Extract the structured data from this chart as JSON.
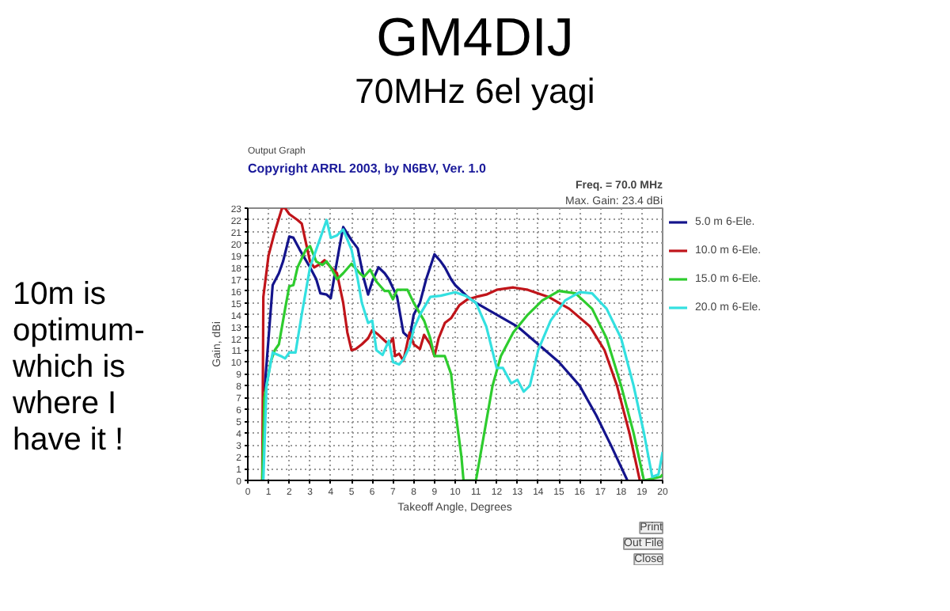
{
  "chart_data": {
    "type": "line",
    "title": "GM4DIJ",
    "subtitle": "70MHz 6el yagi",
    "xlabel": "Takeoff Angle, Degrees",
    "ylabel": "Gain, dBi",
    "annotations": [
      "10m is\noptimum-\nwhich is\nwhere I\nhave it !",
      "Output Graph",
      "Copyright ARRL 2003, by N6BV, Ver. 1.0",
      "Freq. = 70.0 MHz",
      "Max. Gain: 23.4 dBi",
      "Print",
      "Out File",
      "Close"
    ],
    "xlim": [
      0,
      20
    ],
    "ylim": [
      0,
      23
    ],
    "xticks": [
      0,
      1,
      2,
      3,
      4,
      5,
      6,
      7,
      8,
      9,
      10,
      11,
      12,
      13,
      14,
      15,
      16,
      17,
      18,
      19,
      20
    ],
    "yticks": [
      0,
      1,
      2,
      3,
      4,
      5,
      6,
      7,
      8,
      9,
      10,
      11,
      12,
      13,
      14,
      15,
      16,
      17,
      18,
      19,
      20,
      21,
      22,
      23
    ],
    "grid": true,
    "legend": "right",
    "line_style": "solid",
    "series": [
      {
        "name": "5.0 m 6-Ele.",
        "color": "#14148c",
        "x": [
          0.8,
          1.0,
          1.2,
          1.5,
          1.7,
          2.0,
          2.2,
          2.5,
          3.0,
          3.3,
          3.5,
          3.8,
          4.0,
          4.2,
          4.4,
          4.6,
          5.0,
          5.3,
          5.6,
          5.8,
          6.0,
          6.3,
          6.6,
          6.8,
          7.2,
          7.5,
          7.8,
          8.0,
          8.3,
          8.6,
          9.0,
          9.3,
          9.5,
          9.8,
          10.0,
          10.6,
          11.0,
          12.0,
          13.0,
          14.0,
          15.0,
          16.0,
          16.8,
          17.5,
          18.3
        ],
        "values": [
          7.5,
          12,
          16.5,
          17.5,
          18.5,
          20.6,
          20.5,
          19.5,
          18,
          17,
          15.8,
          15.7,
          15.4,
          17.5,
          19.5,
          21.4,
          20.3,
          19.6,
          17,
          15.7,
          16.8,
          18,
          17.5,
          17,
          15.5,
          12.5,
          12,
          14,
          15,
          17,
          19.1,
          18.5,
          18,
          17,
          16.5,
          15.5,
          15,
          14,
          13,
          11.5,
          10,
          8,
          5.5,
          3,
          0
        ]
      },
      {
        "name": "10.0 m 6-Ele.",
        "color": "#c0141a",
        "x": [
          0.7,
          0.75,
          1.0,
          1.3,
          1.65,
          1.8,
          2.0,
          2.4,
          2.6,
          3.0,
          3.2,
          3.5,
          3.7,
          4.0,
          4.3,
          4.6,
          4.8,
          5.0,
          5.2,
          5.5,
          5.8,
          6.0,
          6.3,
          6.6,
          6.8,
          7.0,
          7.1,
          7.3,
          7.5,
          7.8,
          8.0,
          8.3,
          8.5,
          8.8,
          9.0,
          9.2,
          9.5,
          9.8,
          10.2,
          10.6,
          11.0,
          11.5,
          12.0,
          12.8,
          13.5,
          14.5,
          15.5,
          16.5,
          17.2,
          17.8,
          18.4,
          18.9
        ],
        "values": [
          0,
          15.5,
          19,
          21,
          23,
          23,
          22.5,
          22,
          21.7,
          18.5,
          18,
          18.3,
          18.6,
          18,
          17.5,
          15,
          12.5,
          11,
          11.1,
          11.5,
          12,
          12.7,
          12.3,
          11.8,
          11.5,
          12,
          10.5,
          10.7,
          10.1,
          12.5,
          11.5,
          11.1,
          12.3,
          11.5,
          10.5,
          12,
          13.3,
          13.7,
          14.8,
          15.3,
          15.5,
          15.7,
          16.1,
          16.3,
          16.1,
          15.5,
          14.5,
          13,
          11,
          8,
          4,
          0
        ]
      },
      {
        "name": "15.0 m 6-Ele.",
        "color": "#2ecc2e",
        "x": [
          0.7,
          0.8,
          1.1,
          1.3,
          1.5,
          1.8,
          2.0,
          2.2,
          2.4,
          2.8,
          3.0,
          3.3,
          3.6,
          3.8,
          4.0,
          4.3,
          4.6,
          5.0,
          5.4,
          5.6,
          5.9,
          6.2,
          6.6,
          6.8,
          7.0,
          7.2,
          7.7,
          8.0,
          8.5,
          8.8,
          9.0,
          9.5,
          9.8,
          10.0,
          10.3,
          10.4,
          11.0,
          11.4,
          11.8,
          12.2,
          12.8,
          13.5,
          14.2,
          15.0,
          15.8,
          16.6,
          17.3,
          18.0,
          18.6,
          19.1,
          19.9,
          20.0
        ],
        "values": [
          0,
          7,
          10,
          11,
          11.5,
          14.5,
          16.4,
          16.5,
          18,
          19.5,
          19.8,
          18.5,
          18.2,
          18.5,
          18,
          17,
          17.5,
          18.3,
          17.5,
          17.2,
          17.8,
          16.8,
          16,
          16,
          15.3,
          16.1,
          16.1,
          15,
          13.5,
          12,
          10.5,
          10.5,
          9,
          6,
          2,
          0,
          0,
          4,
          8,
          10.5,
          12.5,
          14,
          15.2,
          16,
          15.8,
          14.5,
          12,
          8,
          4,
          0,
          0.3,
          0.5
        ]
      },
      {
        "name": "20.0 m 6-Ele.",
        "color": "#33e0e0",
        "x": [
          0.75,
          0.9,
          1.2,
          1.6,
          1.8,
          2.0,
          2.3,
          2.6,
          3.0,
          3.3,
          3.6,
          3.8,
          4.0,
          4.3,
          4.6,
          5.0,
          5.3,
          5.5,
          5.8,
          6.0,
          6.2,
          6.5,
          6.8,
          7.0,
          7.3,
          7.5,
          7.8,
          8.0,
          8.3,
          8.8,
          9.3,
          10.0,
          10.5,
          11.0,
          11.5,
          12.0,
          12.3,
          12.7,
          13.0,
          13.3,
          13.6,
          14.0,
          14.6,
          15.3,
          16.0,
          16.6,
          17.3,
          18.0,
          18.6,
          19.1,
          19.5,
          19.8,
          20.0
        ],
        "values": [
          0,
          8,
          10.8,
          10.5,
          10.3,
          10.8,
          10.8,
          14,
          18,
          19.5,
          21,
          22,
          20.5,
          20.7,
          21.2,
          19.5,
          17,
          15,
          13.3,
          13.5,
          11,
          10.6,
          11.8,
          10,
          9.8,
          10.2,
          11.3,
          12.8,
          14,
          15.5,
          15.6,
          15.9,
          15.6,
          15,
          13,
          9.5,
          9.5,
          8.2,
          8.5,
          7.5,
          8,
          11,
          13.5,
          15.2,
          15.9,
          15.8,
          14.5,
          12,
          8,
          4,
          0.3,
          0.5,
          2.4
        ]
      }
    ]
  }
}
